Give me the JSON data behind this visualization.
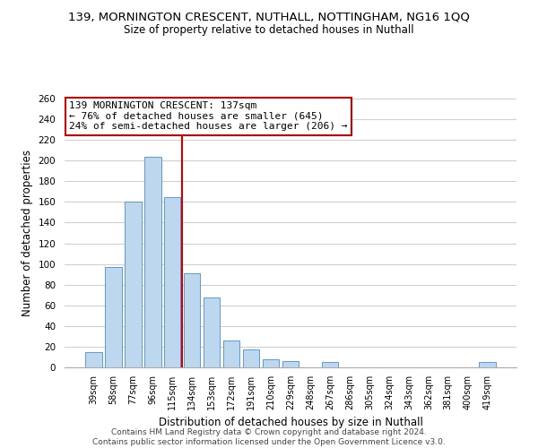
{
  "title": "139, MORNINGTON CRESCENT, NUTHALL, NOTTINGHAM, NG16 1QQ",
  "subtitle": "Size of property relative to detached houses in Nuthall",
  "xlabel": "Distribution of detached houses by size in Nuthall",
  "ylabel": "Number of detached properties",
  "bin_labels": [
    "39sqm",
    "58sqm",
    "77sqm",
    "96sqm",
    "115sqm",
    "134sqm",
    "153sqm",
    "172sqm",
    "191sqm",
    "210sqm",
    "229sqm",
    "248sqm",
    "267sqm",
    "286sqm",
    "305sqm",
    "324sqm",
    "343sqm",
    "362sqm",
    "381sqm",
    "400sqm",
    "419sqm"
  ],
  "bar_values": [
    15,
    97,
    160,
    204,
    165,
    91,
    68,
    26,
    17,
    8,
    6,
    0,
    5,
    0,
    0,
    0,
    0,
    0,
    0,
    0,
    5
  ],
  "bar_color": "#bdd7ee",
  "bar_edge_color": "#5b9bd5",
  "vline_x_index": 5,
  "vline_color": "#cc0000",
  "ylim": [
    0,
    260
  ],
  "yticks": [
    0,
    20,
    40,
    60,
    80,
    100,
    120,
    140,
    160,
    180,
    200,
    220,
    240,
    260
  ],
  "annotation_title": "139 MORNINGTON CRESCENT: 137sqm",
  "annotation_line1": "← 76% of detached houses are smaller (645)",
  "annotation_line2": "24% of semi-detached houses are larger (206) →",
  "annotation_box_color": "#ffffff",
  "annotation_box_edge": "#cc0000",
  "footer_line1": "Contains HM Land Registry data © Crown copyright and database right 2024.",
  "footer_line2": "Contains public sector information licensed under the Open Government Licence v3.0.",
  "background_color": "#ffffff",
  "grid_color": "#d0d0d0",
  "title_fontsize": 9.5,
  "subtitle_fontsize": 8.5
}
